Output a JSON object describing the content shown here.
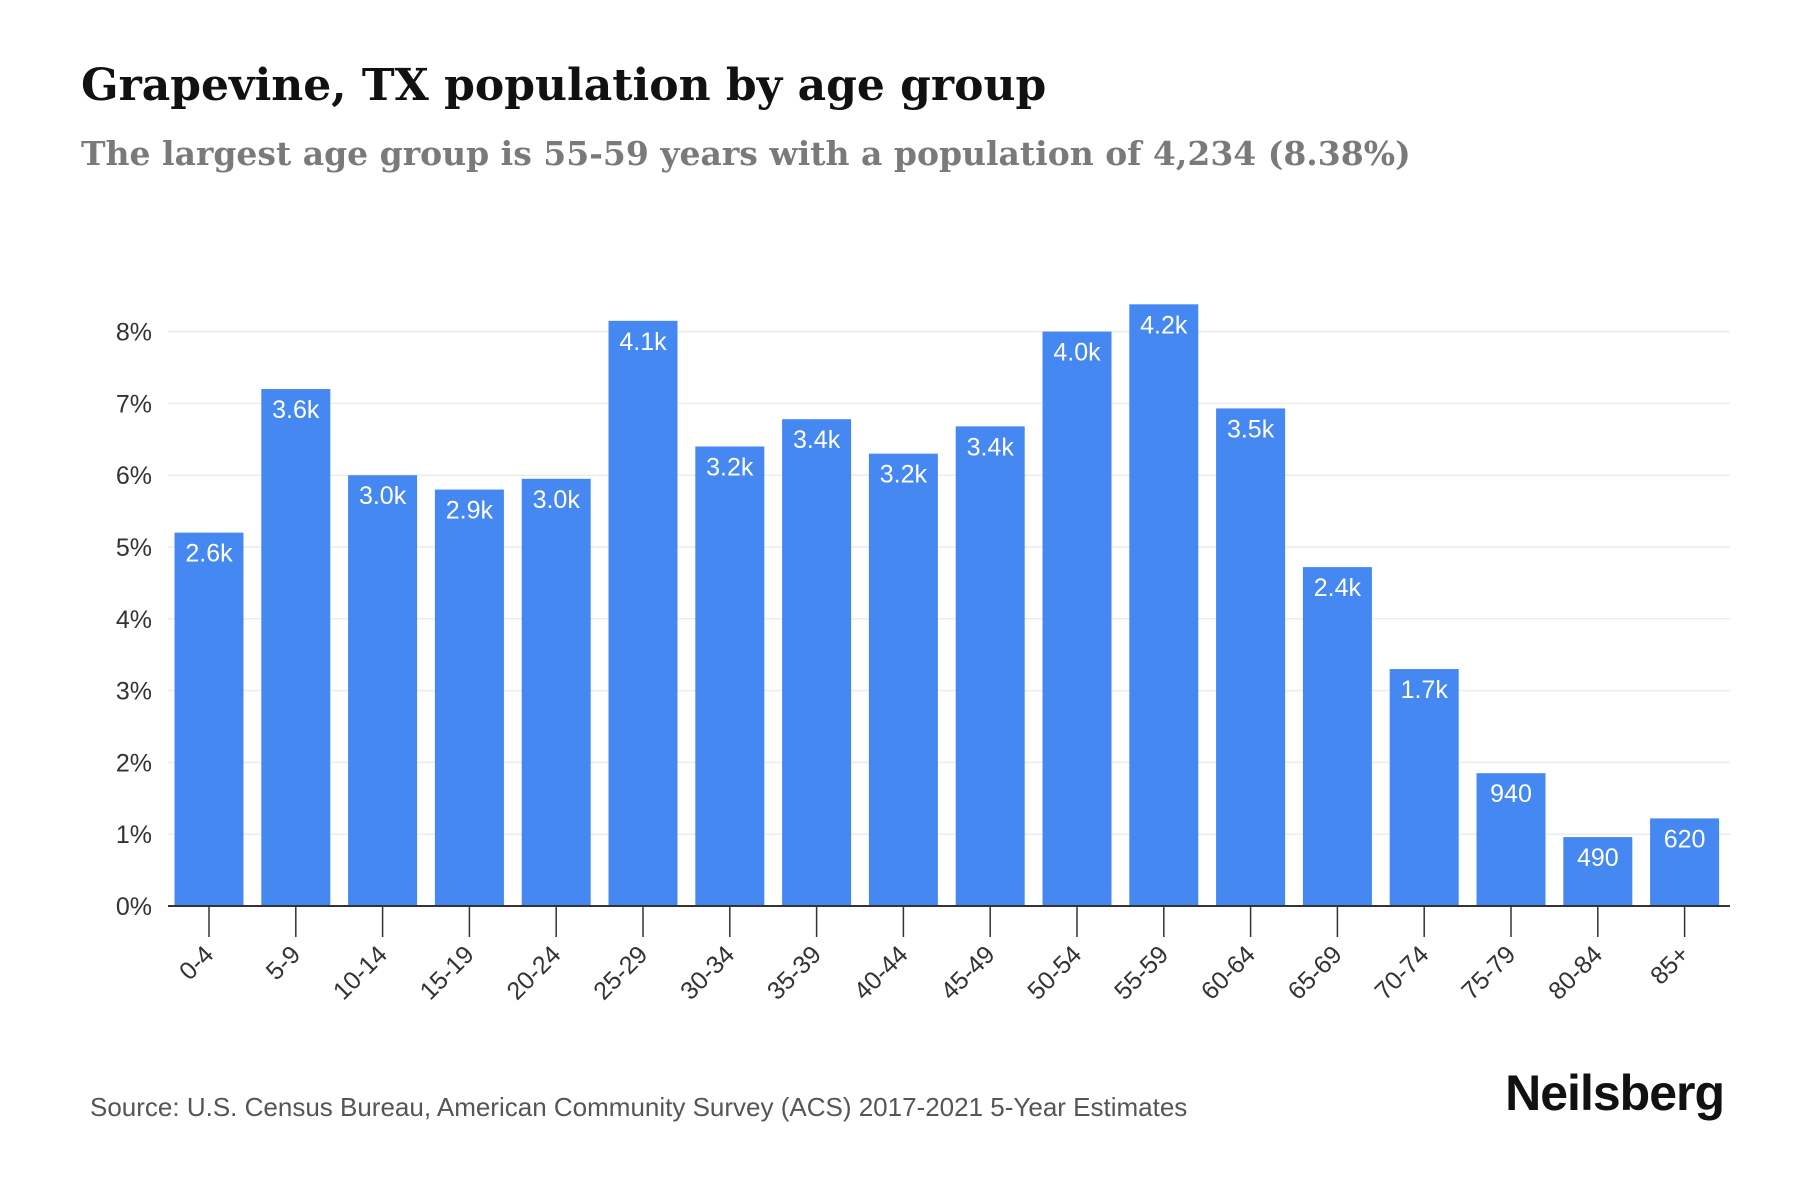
{
  "title": "Grapevine, TX population by age group",
  "subtitle": "The largest age group is 55-59 years with a population of 4,234 (8.38%)",
  "source": "Source: U.S. Census Bureau, American Community Survey (ACS) 2017-2021 5-Year Estimates",
  "brand": "Neilsberg",
  "colors": {
    "bar": "#4688f1",
    "bar_label": "#ffffff",
    "grid": "#ececec",
    "axis": "#333333",
    "tick_text": "#333333"
  },
  "chart_data": {
    "type": "bar",
    "categories": [
      "0-4",
      "5-9",
      "10-14",
      "15-19",
      "20-24",
      "25-29",
      "30-34",
      "35-39",
      "40-44",
      "45-49",
      "50-54",
      "55-59",
      "60-64",
      "65-69",
      "70-74",
      "75-79",
      "80-84",
      "85+"
    ],
    "values": [
      5.2,
      7.2,
      6.0,
      5.8,
      5.95,
      8.15,
      6.4,
      6.78,
      6.3,
      6.68,
      8.0,
      8.38,
      6.93,
      4.72,
      3.3,
      1.85,
      0.96,
      1.22
    ],
    "data_labels": [
      "2.6k",
      "3.6k",
      "3.0k",
      "2.9k",
      "3.0k",
      "4.1k",
      "3.2k",
      "3.4k",
      "3.2k",
      "3.4k",
      "4.0k",
      "4.2k",
      "3.5k",
      "2.4k",
      "1.7k",
      "940",
      "490",
      "620"
    ],
    "y_ticks": [
      "0%",
      "1%",
      "2%",
      "3%",
      "4%",
      "5%",
      "6%",
      "7%",
      "8%"
    ],
    "ylim": [
      0,
      8.5
    ],
    "grid": true,
    "xlabel": "",
    "ylabel": ""
  }
}
